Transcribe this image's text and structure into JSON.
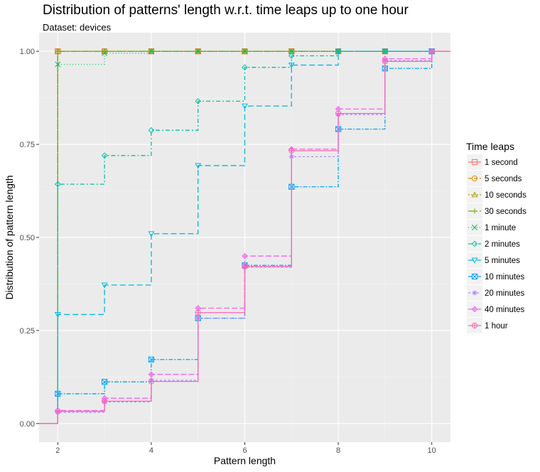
{
  "chart_data": {
    "type": "line",
    "step": true,
    "title": "Distribution of patterns' length w.r.t. time leaps up to one hour",
    "subtitle": "Dataset: devices",
    "xlabel": "Pattern length",
    "ylabel": "Distribution of pattern length",
    "xlim": [
      1.6,
      10.4
    ],
    "ylim": [
      -0.05,
      1.05
    ],
    "xticks": [
      2,
      4,
      6,
      8,
      10
    ],
    "xtick_labels": [
      "2",
      "4",
      "6",
      "8",
      "10"
    ],
    "yticks": [
      0,
      0.25,
      0.5,
      0.75,
      1
    ],
    "ytick_labels": [
      "0.00",
      "0.25",
      "0.50",
      "0.75",
      "1.00"
    ],
    "grid": true,
    "legend_title": "Time leaps",
    "legend_position": "right",
    "x": [
      1,
      2,
      3,
      4,
      5,
      6,
      7,
      8,
      9,
      10,
      11
    ],
    "series": [
      {
        "name": "1 second",
        "color": "#F8766D",
        "dash": "none",
        "marker": "square",
        "values": [
          0,
          1,
          1,
          1,
          1,
          1,
          1,
          1,
          1,
          1,
          1
        ]
      },
      {
        "name": "5 seconds",
        "color": "#DB8E00",
        "dash": "5,3",
        "marker": "circle",
        "values": [
          0,
          1,
          1,
          1,
          1,
          1,
          1,
          1,
          1,
          1,
          1
        ]
      },
      {
        "name": "10 seconds",
        "color": "#AEA200",
        "dash": "2,2",
        "marker": "triangle",
        "values": [
          0,
          1,
          1,
          1,
          1,
          1,
          1,
          1,
          1,
          1,
          1
        ]
      },
      {
        "name": "30 seconds",
        "color": "#64B200",
        "dash": "8,3,2,3",
        "marker": "plus",
        "values": [
          0,
          1,
          1,
          1,
          1,
          1,
          1,
          1,
          1,
          1,
          1
        ]
      },
      {
        "name": "1 minute",
        "color": "#00BD5C",
        "dash": "1,3",
        "marker": "x",
        "values": [
          0,
          0.965,
          0.995,
          1,
          1,
          1,
          1,
          1,
          1,
          1,
          1
        ]
      },
      {
        "name": "2 minutes",
        "color": "#00C1A7",
        "dash": "6,3,2,3",
        "marker": "diamond",
        "values": [
          0,
          0.643,
          0.72,
          0.788,
          0.866,
          0.957,
          0.988,
          1,
          1,
          1,
          1
        ]
      },
      {
        "name": "5 minutes",
        "color": "#00BADE",
        "dash": "8,4",
        "marker": "triangle-down",
        "values": [
          0,
          0.293,
          0.372,
          0.51,
          0.693,
          0.853,
          0.963,
          1,
          1,
          1,
          1
        ]
      },
      {
        "name": "10 minutes",
        "color": "#00A6FF",
        "dash": "6,2,2,2",
        "marker": "boxed-square",
        "values": [
          0,
          0.08,
          0.112,
          0.172,
          0.283,
          0.425,
          0.636,
          0.791,
          0.954,
          1,
          1
        ]
      },
      {
        "name": "20 minutes",
        "color": "#B385FF",
        "dash": "3,3",
        "marker": "asterisk",
        "values": [
          0,
          0.03,
          0.058,
          0.116,
          0.283,
          0.42,
          0.717,
          0.83,
          0.975,
          1,
          1
        ]
      },
      {
        "name": "40 minutes",
        "color": "#EF67EB",
        "dash": "8,3",
        "marker": "diamond-plus",
        "values": [
          0,
          0.035,
          0.068,
          0.132,
          0.31,
          0.45,
          0.737,
          0.845,
          0.98,
          1,
          1
        ]
      },
      {
        "name": "1 hour",
        "color": "#FF63B6",
        "dash": "none",
        "marker": "circle-plus",
        "values": [
          0,
          0.033,
          0.06,
          0.113,
          0.298,
          0.422,
          0.733,
          0.833,
          0.973,
          1,
          1
        ]
      }
    ]
  }
}
